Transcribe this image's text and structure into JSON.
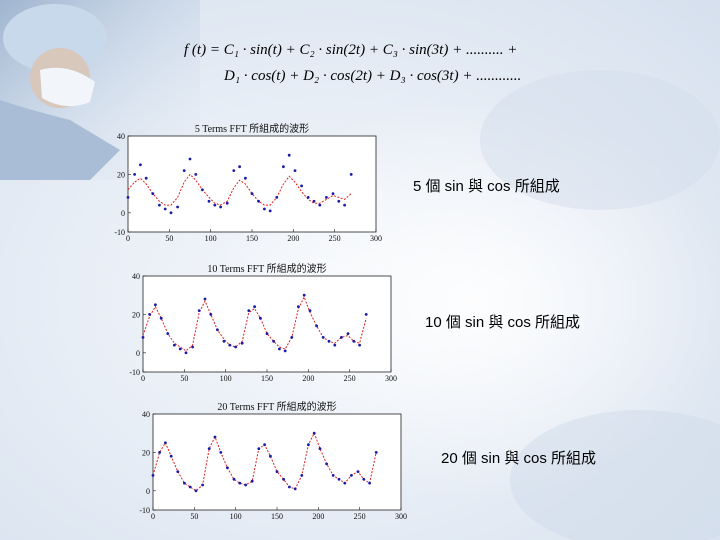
{
  "formula": {
    "line1": "f (t) = C₁ · sin(t) + C₂ · sin(2t) + C₃ · sin(3t) + .......... +",
    "line2": "D₁ · cos(t) + D₂ · cos(2t) + D₃ · cos(3t) + ............"
  },
  "captions": [
    "5 個 sin 與 cos 所組成",
    "10 個 sin 與 cos 所組成",
    "20 個 sin 與 cos 所組成"
  ],
  "colors": {
    "data_points": "#1a1aa8",
    "fit_line": "#e02020",
    "axis": "#222222"
  },
  "chart_data": [
    {
      "type": "line",
      "title": "5 Terms FFT 所組成的波形",
      "xlim": [
        0,
        300
      ],
      "ylim": [
        -10,
        40
      ],
      "xticks": [
        "0",
        "50",
        "100",
        "150",
        "200",
        "250",
        "300"
      ],
      "yticks": [
        "-10",
        "0",
        "20",
        "40"
      ],
      "series": [
        {
          "type": "points",
          "x": [
            0,
            8,
            15,
            22,
            30,
            38,
            45,
            52,
            60,
            68,
            75,
            82,
            90,
            98,
            105,
            112,
            120,
            128,
            135,
            142,
            150,
            158,
            165,
            172,
            180,
            188,
            195,
            202,
            210,
            218,
            225,
            232,
            240,
            248,
            255,
            262,
            270
          ],
          "y": [
            8,
            20,
            25,
            18,
            10,
            4,
            2,
            0,
            3,
            22,
            28,
            20,
            12,
            6,
            4,
            3,
            5,
            22,
            24,
            18,
            10,
            6,
            2,
            1,
            8,
            24,
            30,
            22,
            14,
            8,
            6,
            4,
            8,
            10,
            6,
            4,
            20
          ]
        },
        {
          "type": "fit",
          "x": [
            0,
            8,
            15,
            22,
            30,
            38,
            45,
            52,
            60,
            68,
            75,
            82,
            90,
            98,
            105,
            112,
            120,
            128,
            135,
            142,
            150,
            158,
            165,
            172,
            180,
            188,
            195,
            202,
            210,
            218,
            225,
            232,
            240,
            248,
            255,
            262,
            270
          ],
          "y": [
            12,
            16,
            18,
            15,
            10,
            6,
            4,
            4,
            8,
            16,
            20,
            17,
            12,
            8,
            5,
            4,
            6,
            13,
            17,
            15,
            10,
            6,
            4,
            4,
            8,
            15,
            19,
            16,
            11,
            7,
            5,
            5,
            7,
            9,
            8,
            7,
            10
          ]
        }
      ]
    },
    {
      "type": "line",
      "title": "10 Terms FFT 所組成的波形",
      "xlim": [
        0,
        300
      ],
      "ylim": [
        -10,
        40
      ],
      "xticks": [
        "0",
        "50",
        "100",
        "150",
        "200",
        "250",
        "300"
      ],
      "yticks": [
        "-10",
        "0",
        "20",
        "40"
      ],
      "series": [
        {
          "type": "points",
          "x": [
            0,
            8,
            15,
            22,
            30,
            38,
            45,
            52,
            60,
            68,
            75,
            82,
            90,
            98,
            105,
            112,
            120,
            128,
            135,
            142,
            150,
            158,
            165,
            172,
            180,
            188,
            195,
            202,
            210,
            218,
            225,
            232,
            240,
            248,
            255,
            262,
            270
          ],
          "y": [
            8,
            20,
            25,
            18,
            10,
            4,
            2,
            0,
            3,
            22,
            28,
            20,
            12,
            6,
            4,
            3,
            5,
            22,
            24,
            18,
            10,
            6,
            2,
            1,
            8,
            24,
            30,
            22,
            14,
            8,
            6,
            4,
            8,
            10,
            6,
            4,
            20
          ]
        },
        {
          "type": "fit",
          "x": [
            0,
            8,
            15,
            22,
            30,
            38,
            45,
            52,
            60,
            68,
            75,
            82,
            90,
            98,
            105,
            112,
            120,
            128,
            135,
            142,
            150,
            158,
            165,
            172,
            180,
            188,
            195,
            202,
            210,
            218,
            225,
            232,
            240,
            248,
            255,
            262,
            270
          ],
          "y": [
            9,
            19,
            24,
            18,
            10,
            5,
            3,
            1,
            4,
            21,
            27,
            20,
            12,
            7,
            4,
            3,
            6,
            21,
            23,
            18,
            10,
            6,
            3,
            2,
            8,
            23,
            29,
            21,
            14,
            8,
            6,
            5,
            8,
            9,
            6,
            5,
            18
          ]
        }
      ]
    },
    {
      "type": "line",
      "title": "20 Terms FFT 所組成的波形",
      "xlim": [
        0,
        300
      ],
      "ylim": [
        -10,
        40
      ],
      "xticks": [
        "0",
        "50",
        "100",
        "150",
        "200",
        "250",
        "300"
      ],
      "yticks": [
        "-10",
        "0",
        "20",
        "40"
      ],
      "series": [
        {
          "type": "points",
          "x": [
            0,
            8,
            15,
            22,
            30,
            38,
            45,
            52,
            60,
            68,
            75,
            82,
            90,
            98,
            105,
            112,
            120,
            128,
            135,
            142,
            150,
            158,
            165,
            172,
            180,
            188,
            195,
            202,
            210,
            218,
            225,
            232,
            240,
            248,
            255,
            262,
            270
          ],
          "y": [
            8,
            20,
            25,
            18,
            10,
            4,
            2,
            0,
            3,
            22,
            28,
            20,
            12,
            6,
            4,
            3,
            5,
            22,
            24,
            18,
            10,
            6,
            2,
            1,
            8,
            24,
            30,
            22,
            14,
            8,
            6,
            4,
            8,
            10,
            6,
            4,
            20
          ]
        },
        {
          "type": "fit",
          "x": [
            0,
            8,
            15,
            22,
            30,
            38,
            45,
            52,
            60,
            68,
            75,
            82,
            90,
            98,
            105,
            112,
            120,
            128,
            135,
            142,
            150,
            158,
            165,
            172,
            180,
            188,
            195,
            202,
            210,
            218,
            225,
            232,
            240,
            248,
            255,
            262,
            270
          ],
          "y": [
            8,
            20,
            25,
            18,
            10,
            4,
            2,
            0,
            3,
            22,
            28,
            20,
            12,
            6,
            4,
            3,
            5,
            22,
            24,
            18,
            10,
            6,
            2,
            1,
            8,
            24,
            30,
            22,
            14,
            8,
            6,
            4,
            8,
            10,
            6,
            4,
            20
          ]
        }
      ]
    }
  ]
}
